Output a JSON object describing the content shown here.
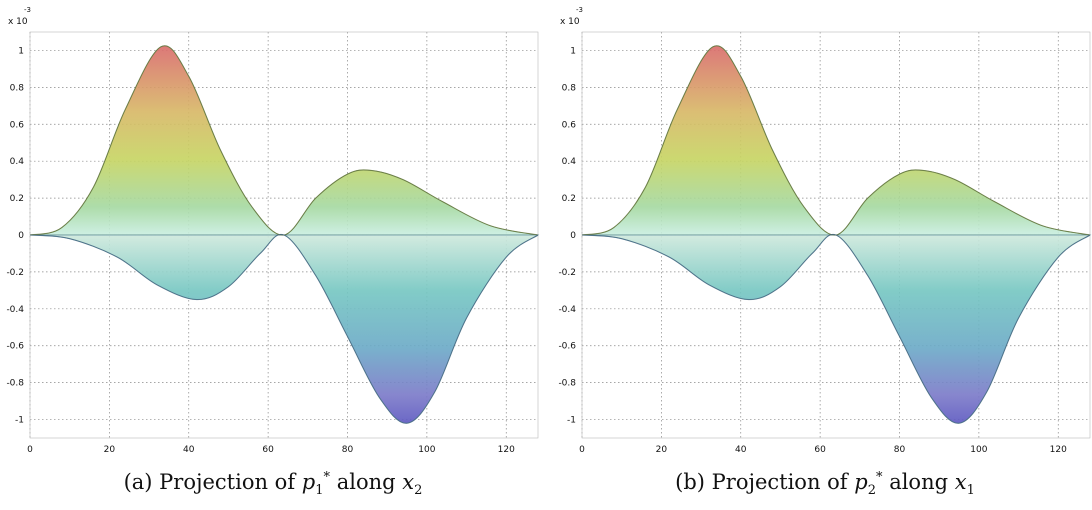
{
  "chart_data": [
    {
      "type": "area",
      "panel_label": "(a)",
      "caption": {
        "prefix": "(a) Projection of",
        "var": "p",
        "var_sub": "1",
        "var_sup": "*",
        "mid": "along",
        "axis_var": "x",
        "axis_sub": "2"
      },
      "y_exponent_label": "x 10",
      "y_exponent_power": "-3",
      "xlim": [
        0,
        128
      ],
      "ylim": [
        -1.1,
        1.1
      ],
      "x_ticks": [
        "0",
        "20",
        "40",
        "60",
        "80",
        "100",
        "120"
      ],
      "x_tick_values": [
        0,
        20,
        40,
        60,
        80,
        100,
        120
      ],
      "y_ticks": [
        "1",
        "0.8",
        "0.6",
        "0.4",
        "0.2",
        "0",
        "-0.2",
        "-0.4",
        "-0.6",
        "-0.8",
        "-1"
      ],
      "y_tick_values": [
        1,
        0.8,
        0.6,
        0.4,
        0.2,
        0,
        -0.2,
        -0.4,
        -0.6,
        -0.8,
        -1
      ],
      "grid": true,
      "series": [
        {
          "upper": [
            [
              0,
              0
            ],
            [
              8,
              0.04
            ],
            [
              16,
              0.26
            ],
            [
              24,
              0.68
            ],
            [
              33,
              1.02
            ],
            [
              40,
              0.86
            ],
            [
              48,
              0.46
            ],
            [
              56,
              0.15
            ],
            [
              64,
              0
            ],
            [
              72,
              0.2
            ],
            [
              80,
              0.33
            ],
            [
              86,
              0.35
            ],
            [
              94,
              0.3
            ],
            [
              104,
              0.18
            ],
            [
              116,
              0.05
            ],
            [
              128,
              0
            ]
          ],
          "lower": [
            [
              0,
              0
            ],
            [
              10,
              -0.02
            ],
            [
              22,
              -0.12
            ],
            [
              32,
              -0.27
            ],
            [
              42,
              -0.35
            ],
            [
              50,
              -0.28
            ],
            [
              58,
              -0.1
            ],
            [
              64,
              0
            ],
            [
              72,
              -0.22
            ],
            [
              80,
              -0.55
            ],
            [
              88,
              -0.88
            ],
            [
              95,
              -1.02
            ],
            [
              102,
              -0.85
            ],
            [
              110,
              -0.45
            ],
            [
              120,
              -0.12
            ],
            [
              128,
              0
            ]
          ]
        }
      ]
    },
    {
      "type": "area",
      "panel_label": "(b)",
      "caption": {
        "prefix": "(b) Projection of",
        "var": "p",
        "var_sub": "2",
        "var_sup": "*",
        "mid": "along",
        "axis_var": "x",
        "axis_sub": "1"
      },
      "y_exponent_label": "x 10",
      "y_exponent_power": "-3",
      "xlim": [
        0,
        128
      ],
      "ylim": [
        -1.1,
        1.1
      ],
      "x_ticks": [
        "0",
        "20",
        "40",
        "60",
        "80",
        "100",
        "120"
      ],
      "x_tick_values": [
        0,
        20,
        40,
        60,
        80,
        100,
        120
      ],
      "y_ticks": [
        "1",
        "0.8",
        "0.6",
        "0.4",
        "0.2",
        "0",
        "-0.2",
        "-0.4",
        "-0.6",
        "-0.8",
        "-1"
      ],
      "y_tick_values": [
        1,
        0.8,
        0.6,
        0.4,
        0.2,
        0,
        -0.2,
        -0.4,
        -0.6,
        -0.8,
        -1
      ],
      "grid": true,
      "series": [
        {
          "upper": [
            [
              0,
              0
            ],
            [
              8,
              0.04
            ],
            [
              16,
              0.26
            ],
            [
              24,
              0.68
            ],
            [
              33,
              1.02
            ],
            [
              40,
              0.86
            ],
            [
              48,
              0.46
            ],
            [
              56,
              0.15
            ],
            [
              64,
              0
            ],
            [
              72,
              0.2
            ],
            [
              80,
              0.33
            ],
            [
              86,
              0.35
            ],
            [
              94,
              0.3
            ],
            [
              104,
              0.18
            ],
            [
              116,
              0.05
            ],
            [
              128,
              0
            ]
          ],
          "lower": [
            [
              0,
              0
            ],
            [
              10,
              -0.02
            ],
            [
              22,
              -0.12
            ],
            [
              32,
              -0.27
            ],
            [
              42,
              -0.35
            ],
            [
              50,
              -0.28
            ],
            [
              58,
              -0.1
            ],
            [
              64,
              0
            ],
            [
              72,
              -0.22
            ],
            [
              80,
              -0.55
            ],
            [
              88,
              -0.88
            ],
            [
              95,
              -1.02
            ],
            [
              102,
              -0.85
            ],
            [
              110,
              -0.45
            ],
            [
              120,
              -0.12
            ],
            [
              128,
              0
            ]
          ]
        }
      ]
    }
  ]
}
